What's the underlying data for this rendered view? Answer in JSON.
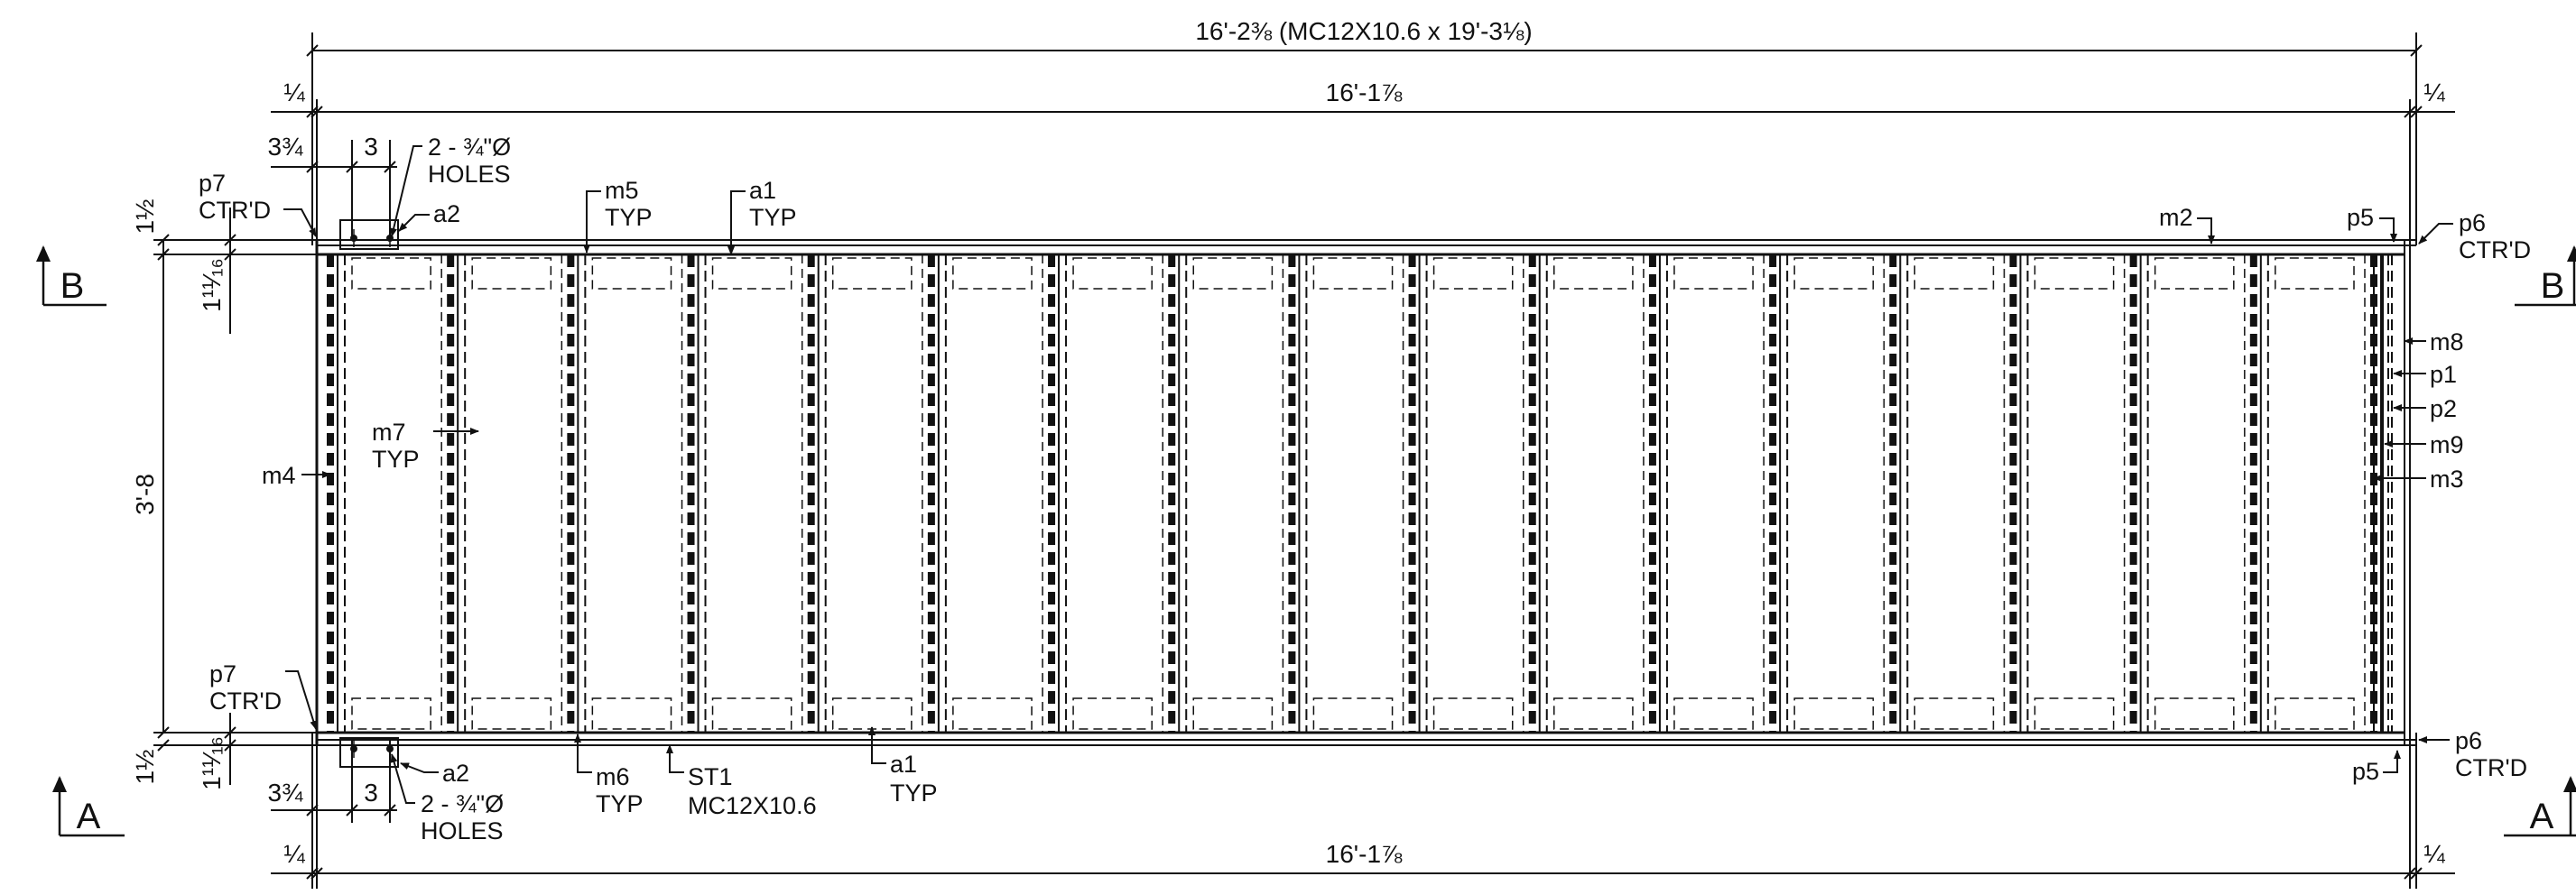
{
  "dimensions": {
    "overall_top": "16'-2⅜ (MC12X10.6 x 19'-3⅛)",
    "top_inner": "16'-1⅞",
    "bottom_inner": "16'-1⅞",
    "quarter": "¼",
    "three_three_quarter": "3¾",
    "three": "3",
    "one_half": "1½",
    "one_eleven_sixteenth": "1¹¹⁄₁₆",
    "height": "3'-8"
  },
  "sections": {
    "left_top": "B",
    "right_top": "B",
    "left_bottom": "A",
    "right_bottom": "A"
  },
  "callouts": {
    "p7_top": [
      "p7",
      "CTR'D"
    ],
    "holes_top": [
      "2 - ¾\"Ø",
      "HOLES"
    ],
    "a2_top": "a2",
    "m5": [
      "m5",
      "TYP"
    ],
    "a1_top": [
      "a1",
      "TYP"
    ],
    "m2": "m2",
    "p5_top": "p5",
    "p6_top": [
      "p6",
      "CTR'D"
    ],
    "m8": "m8",
    "p1": "p1",
    "p2": "p2",
    "m9": "m9",
    "m3": "m3",
    "m7": [
      "m7",
      "TYP"
    ],
    "m4": "m4",
    "p7_bottom": [
      "p7",
      "CTR'D"
    ],
    "a2_bottom": "a2",
    "holes_bottom": [
      "2 - ¾\"Ø",
      "HOLES"
    ],
    "m6": [
      "m6",
      "TYP"
    ],
    "st1": [
      "ST1",
      "MC12X10.6"
    ],
    "a1_bottom": [
      "a1",
      "TYP"
    ],
    "p6_bottom": [
      "p6",
      "CTR'D"
    ],
    "p5_bottom": "p5"
  }
}
